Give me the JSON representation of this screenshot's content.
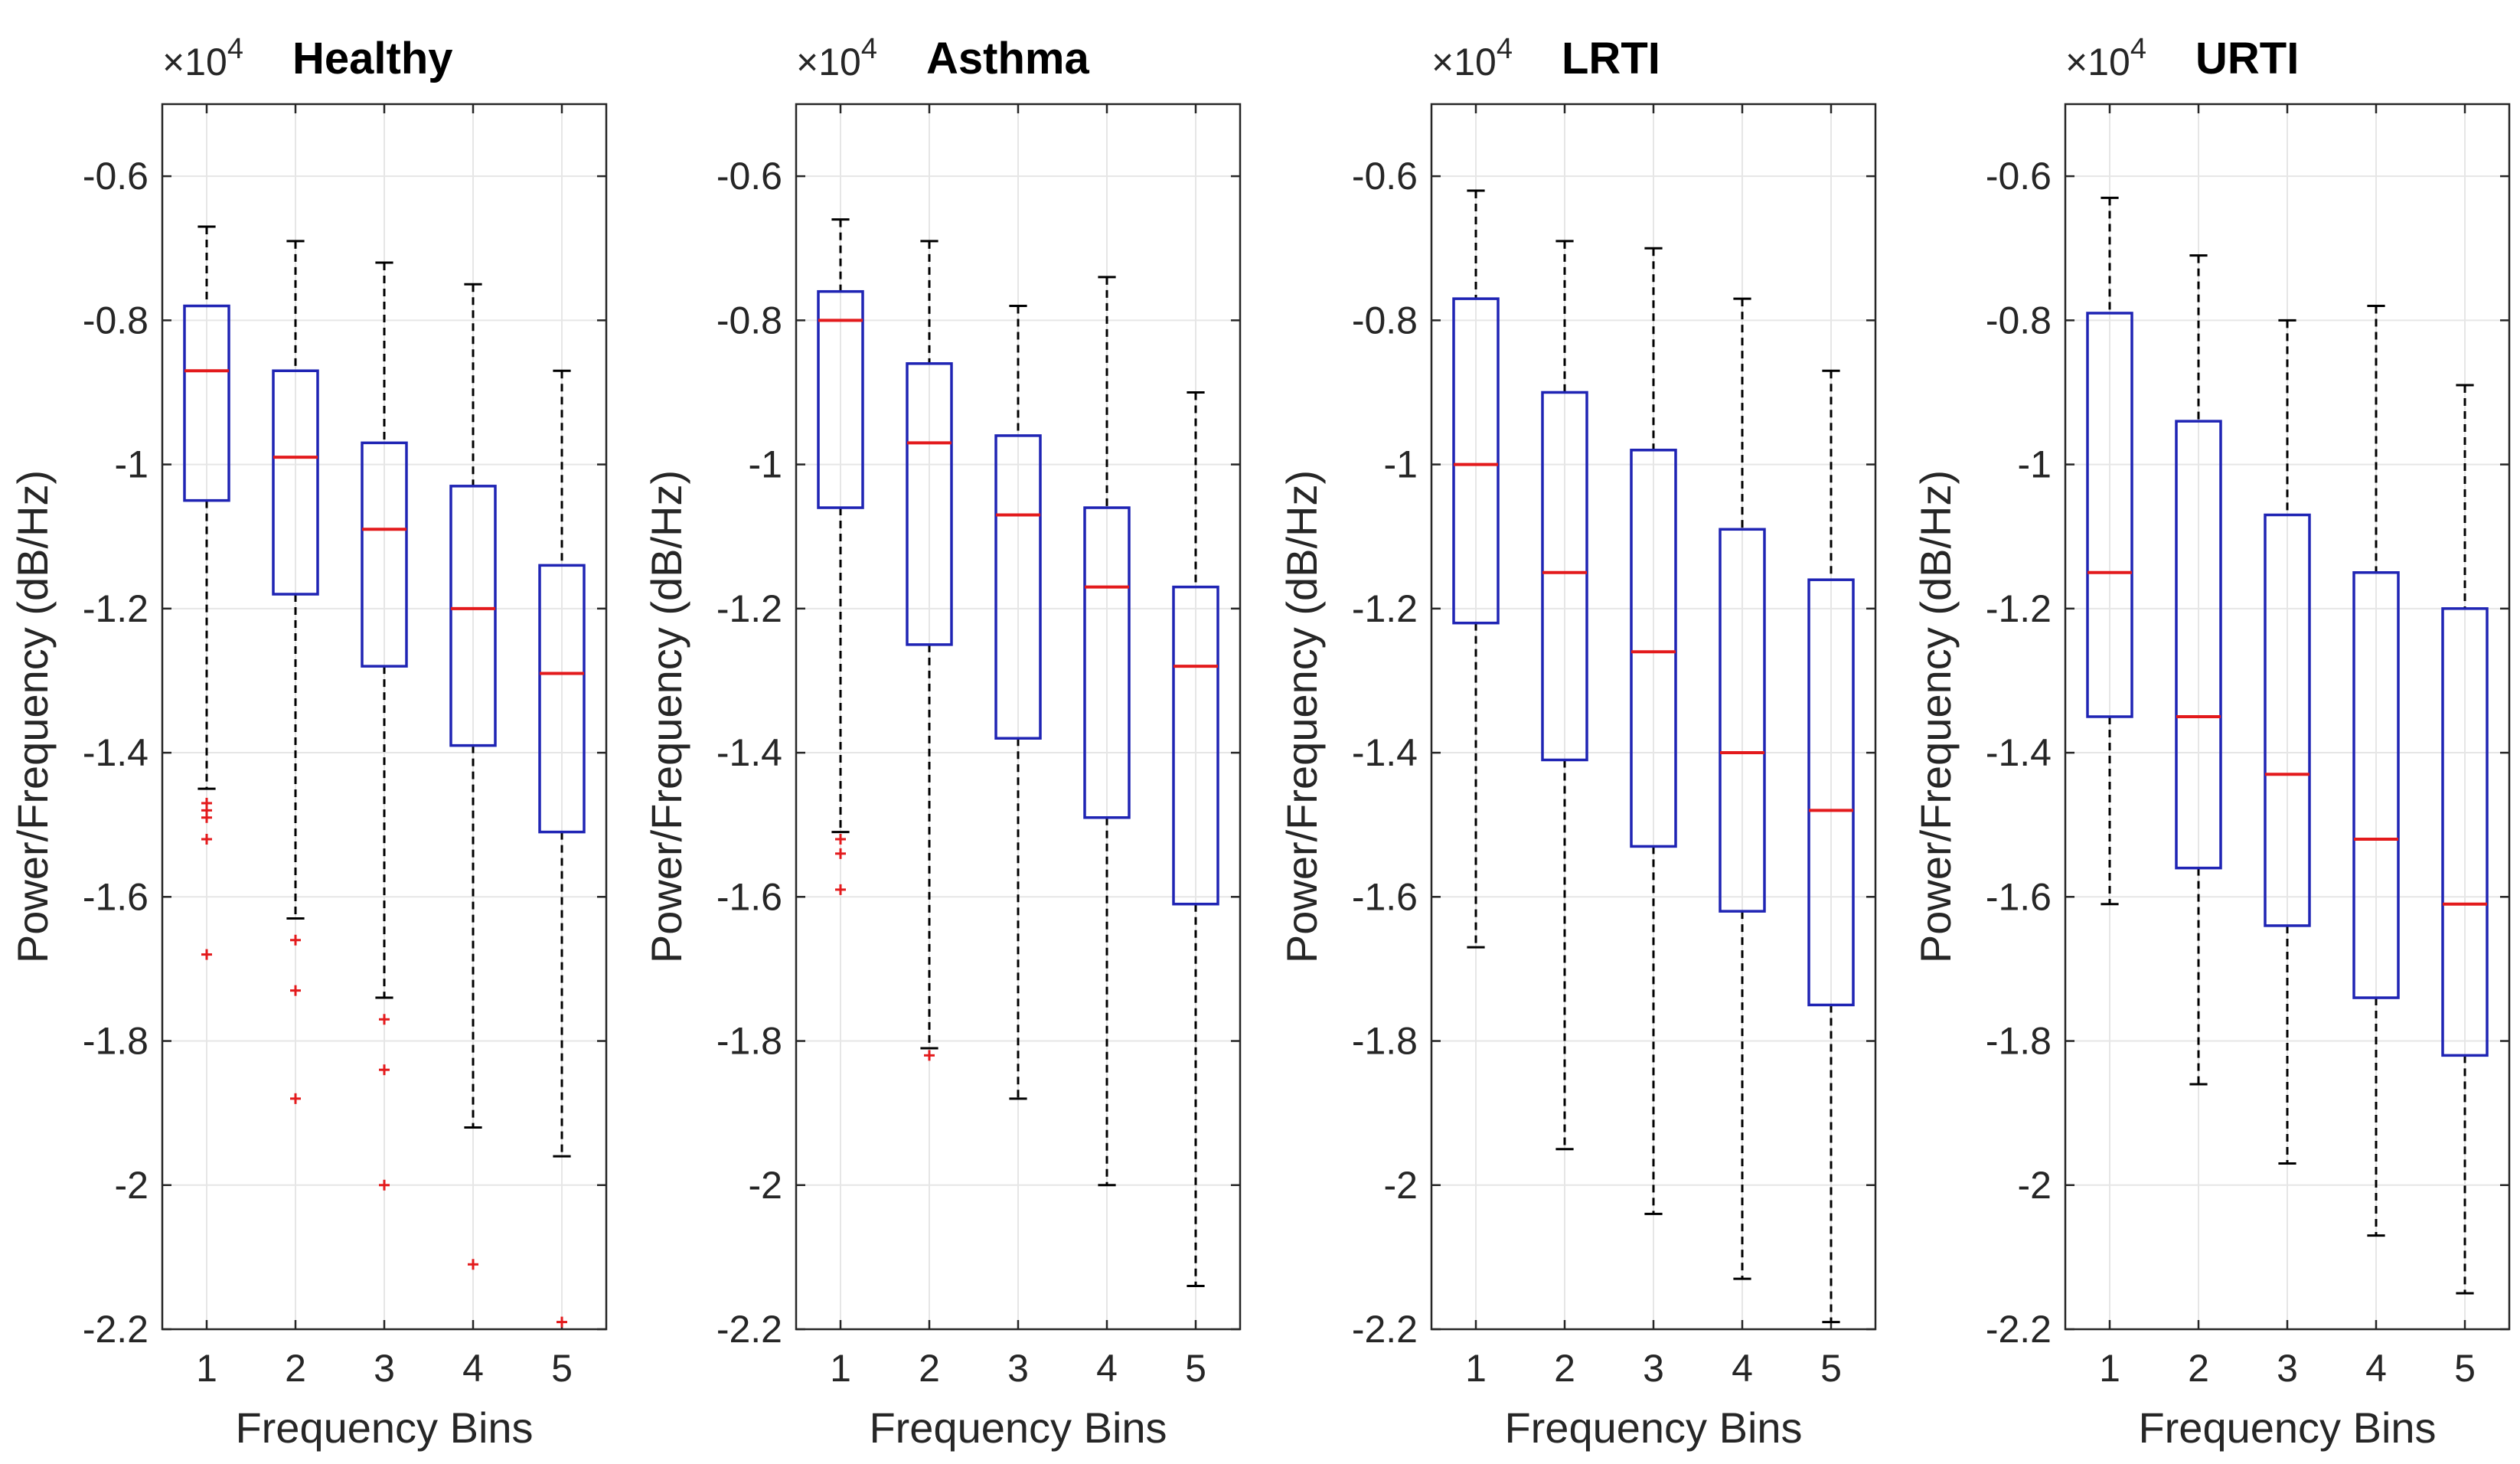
{
  "chart_data": [
    {
      "type": "boxplot",
      "title": "Healthy",
      "xlabel": "Frequency Bins",
      "ylabel": "Power/Frequency (dB/Hz)",
      "y_exponent": "×10^4",
      "y_exponent_base": "×10",
      "y_exponent_power": "4",
      "ylim": [
        -2.2,
        -0.5
      ],
      "yticks": [
        "-0.6",
        "-0.8",
        "-1",
        "-1.2",
        "-1.4",
        "-1.6",
        "-1.8",
        "-2",
        "-2.2"
      ],
      "categories": [
        "1",
        "2",
        "3",
        "4",
        "5"
      ],
      "grid": true,
      "boxes": [
        {
          "whisker_high": -0.67,
          "q3": -0.78,
          "median": -0.87,
          "q1": -1.05,
          "whisker_low": -1.45,
          "outliers": [
            -1.47,
            -1.48,
            -1.49,
            -1.52,
            -1.68
          ]
        },
        {
          "whisker_high": -0.69,
          "q3": -0.87,
          "median": -0.99,
          "q1": -1.18,
          "whisker_low": -1.63,
          "outliers": [
            -1.66,
            -1.73,
            -1.88
          ]
        },
        {
          "whisker_high": -0.72,
          "q3": -0.97,
          "median": -1.09,
          "q1": -1.28,
          "whisker_low": -1.74,
          "outliers": [
            -1.77,
            -1.84,
            -2.0
          ]
        },
        {
          "whisker_high": -0.75,
          "q3": -1.03,
          "median": -1.2,
          "q1": -1.39,
          "whisker_low": -1.92,
          "outliers": [
            -2.11
          ]
        },
        {
          "whisker_high": -0.87,
          "q3": -1.14,
          "median": -1.29,
          "q1": -1.51,
          "whisker_low": -1.96,
          "outliers": [
            -2.19
          ]
        }
      ]
    },
    {
      "type": "boxplot",
      "title": "Asthma",
      "xlabel": "Frequency Bins",
      "ylabel": "Power/Frequency (dB/Hz)",
      "y_exponent": "×10^4",
      "y_exponent_base": "×10",
      "y_exponent_power": "4",
      "ylim": [
        -2.2,
        -0.5
      ],
      "yticks": [
        "-0.6",
        "-0.8",
        "-1",
        "-1.2",
        "-1.4",
        "-1.6",
        "-1.8",
        "-2",
        "-2.2"
      ],
      "categories": [
        "1",
        "2",
        "3",
        "4",
        "5"
      ],
      "grid": true,
      "boxes": [
        {
          "whisker_high": -0.66,
          "q3": -0.76,
          "median": -0.8,
          "q1": -1.06,
          "whisker_low": -1.51,
          "outliers": [
            -1.52,
            -1.54,
            -1.59
          ]
        },
        {
          "whisker_high": -0.69,
          "q3": -0.86,
          "median": -0.97,
          "q1": -1.25,
          "whisker_low": -1.81,
          "outliers": [
            -1.82
          ]
        },
        {
          "whisker_high": -0.78,
          "q3": -0.96,
          "median": -1.07,
          "q1": -1.38,
          "whisker_low": -1.88,
          "outliers": []
        },
        {
          "whisker_high": -0.74,
          "q3": -1.06,
          "median": -1.17,
          "q1": -1.49,
          "whisker_low": -2.0,
          "outliers": []
        },
        {
          "whisker_high": -0.9,
          "q3": -1.17,
          "median": -1.28,
          "q1": -1.61,
          "whisker_low": -2.14,
          "outliers": []
        }
      ]
    },
    {
      "type": "boxplot",
      "title": "LRTI",
      "xlabel": "Frequency Bins",
      "ylabel": "Power/Frequency (dB/Hz)",
      "y_exponent": "×10^4",
      "y_exponent_base": "×10",
      "y_exponent_power": "4",
      "ylim": [
        -2.2,
        -0.5
      ],
      "yticks": [
        "-0.6",
        "-0.8",
        "-1",
        "-1.2",
        "-1.4",
        "-1.6",
        "-1.8",
        "-2",
        "-2.2"
      ],
      "categories": [
        "1",
        "2",
        "3",
        "4",
        "5"
      ],
      "grid": true,
      "boxes": [
        {
          "whisker_high": -0.62,
          "q3": -0.77,
          "median": -1.0,
          "q1": -1.22,
          "whisker_low": -1.67,
          "outliers": []
        },
        {
          "whisker_high": -0.69,
          "q3": -0.9,
          "median": -1.15,
          "q1": -1.41,
          "whisker_low": -1.95,
          "outliers": []
        },
        {
          "whisker_high": -0.7,
          "q3": -0.98,
          "median": -1.26,
          "q1": -1.53,
          "whisker_low": -2.04,
          "outliers": []
        },
        {
          "whisker_high": -0.77,
          "q3": -1.09,
          "median": -1.4,
          "q1": -1.62,
          "whisker_low": -2.13,
          "outliers": []
        },
        {
          "whisker_high": -0.87,
          "q3": -1.16,
          "median": -1.48,
          "q1": -1.75,
          "whisker_low": -2.19,
          "outliers": []
        }
      ]
    },
    {
      "type": "boxplot",
      "title": "URTI",
      "xlabel": "Frequency Bins",
      "ylabel": "Power/Frequency (dB/Hz)",
      "y_exponent": "×10^4",
      "y_exponent_base": "×10",
      "y_exponent_power": "4",
      "ylim": [
        -2.2,
        -0.5
      ],
      "yticks": [
        "-0.6",
        "-0.8",
        "-1",
        "-1.2",
        "-1.4",
        "-1.6",
        "-1.8",
        "-2",
        "-2.2"
      ],
      "categories": [
        "1",
        "2",
        "3",
        "4",
        "5"
      ],
      "grid": true,
      "boxes": [
        {
          "whisker_high": -0.63,
          "q3": -0.79,
          "median": -1.15,
          "q1": -1.35,
          "whisker_low": -1.61,
          "outliers": []
        },
        {
          "whisker_high": -0.71,
          "q3": -0.94,
          "median": -1.35,
          "q1": -1.56,
          "whisker_low": -1.86,
          "outliers": []
        },
        {
          "whisker_high": -0.8,
          "q3": -1.07,
          "median": -1.43,
          "q1": -1.64,
          "whisker_low": -1.97,
          "outliers": []
        },
        {
          "whisker_high": -0.78,
          "q3": -1.15,
          "median": -1.52,
          "q1": -1.74,
          "whisker_low": -2.07,
          "outliers": []
        },
        {
          "whisker_high": -0.89,
          "q3": -1.2,
          "median": -1.61,
          "q1": -1.82,
          "whisker_low": -2.15,
          "outliers": []
        }
      ]
    }
  ],
  "colors": {
    "box": "#1f24b4",
    "median": "#e31a1c",
    "whisker": "#000000",
    "outlier": "#e31a1c",
    "grid": "#e6e6e6",
    "axes": "#262626"
  }
}
